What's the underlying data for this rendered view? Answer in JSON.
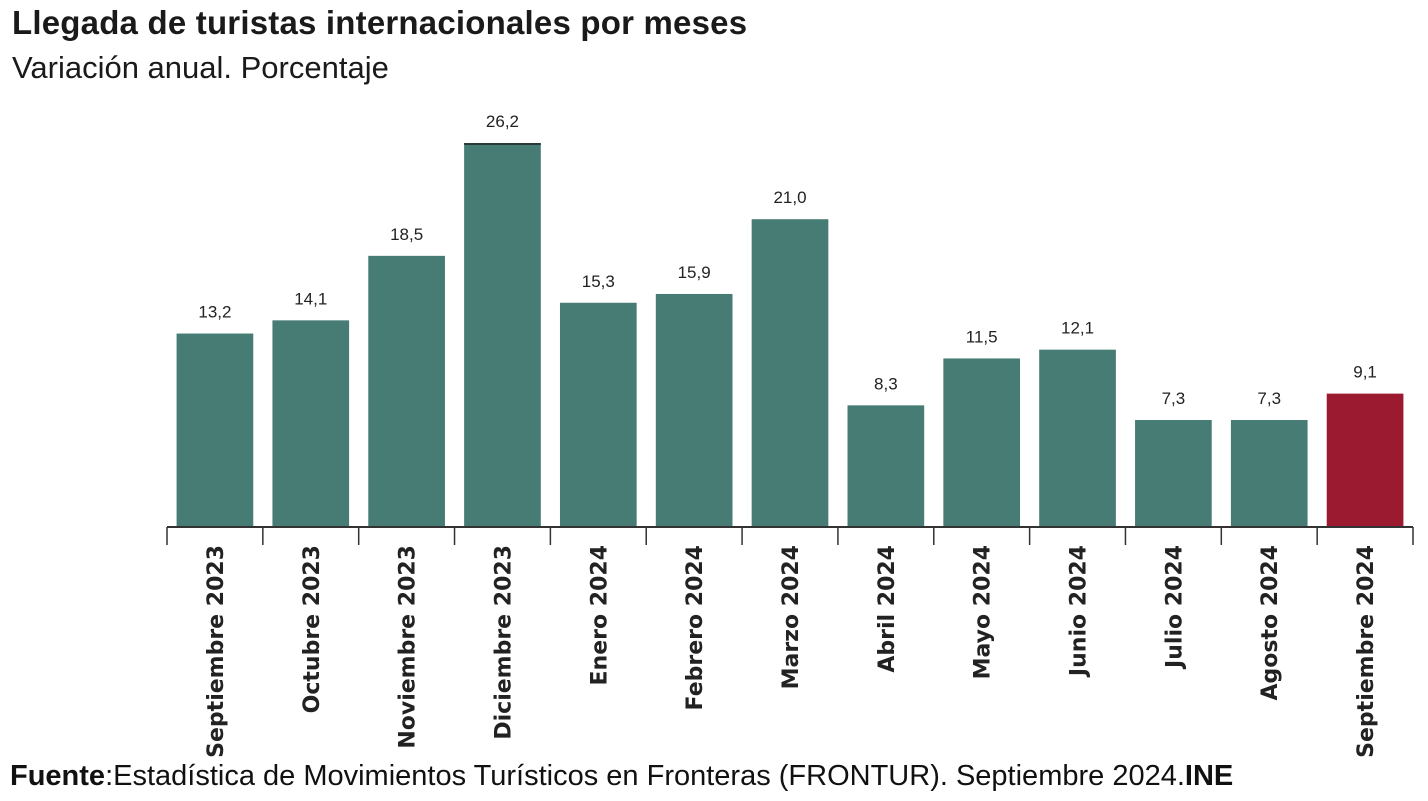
{
  "header": {
    "title": "Llegada de turistas internacionales por meses",
    "subtitle": "Variación anual. Porcentaje"
  },
  "footer": {
    "source_label": "Fuente",
    "source_text": ":Estadística de Movimientos Turísticos en Fronteras (FRONTUR). Septiembre 2024.",
    "source_org": "INE"
  },
  "colors": {
    "bar": "#467c74",
    "highlight": "#9b1a2f",
    "axis": "#333333"
  },
  "chart_data": {
    "type": "bar",
    "title": "Llegada de turistas internacionales por meses",
    "subtitle": "Variación anual. Porcentaje",
    "categories": [
      "Septiembre 2023",
      "Octubre 2023",
      "Noviembre 2023",
      "Diciembre 2023",
      "Enero 2024",
      "Febrero 2024",
      "Marzo 2024",
      "Abril 2024",
      "Mayo 2024",
      "Junio 2024",
      "Julio 2024",
      "Agosto 2024",
      "Septiembre 2024"
    ],
    "values": [
      13.2,
      14.1,
      18.5,
      26.2,
      15.3,
      15.9,
      21.0,
      8.3,
      11.5,
      12.1,
      7.3,
      7.3,
      9.1
    ],
    "value_labels": [
      "13,2",
      "14,1",
      "18,5",
      "26,2",
      "15,3",
      "15,9",
      "21,0",
      "8,3",
      "11,5",
      "12,1",
      "7,3",
      "7,3",
      "9,1"
    ],
    "highlight_index": 12,
    "ylim": [
      0,
      26.2
    ],
    "grid": false,
    "legend": "none"
  }
}
